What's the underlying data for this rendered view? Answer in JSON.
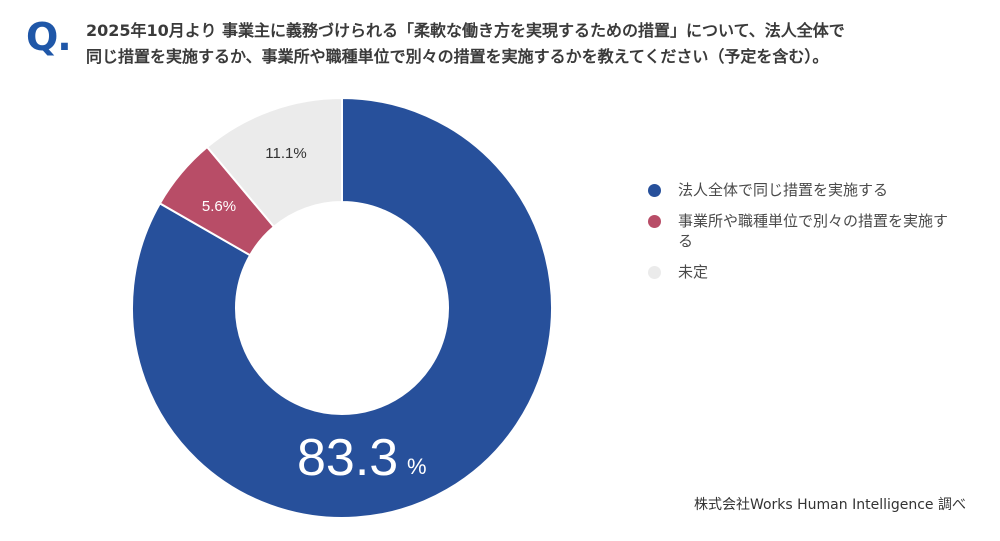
{
  "header": {
    "q_mark": "Q.",
    "question_line1": "2025年10月より 事業主に義務づけられる「柔軟な働き方を実現するための措置」について、法人全体で",
    "question_line2": "同じ措置を実施するか、事業所や職種単位で別々の措置を実施するかを教えてください（予定を含む）。"
  },
  "footer": {
    "credit": "株式会社Works Human Intelligence 調べ"
  },
  "chart_data": {
    "type": "pie",
    "donut": true,
    "title": "",
    "legend_position": "right",
    "series": [
      {
        "name": "法人全体で同じ措置を実施する",
        "value": 83.3,
        "label": "83.3",
        "unit": "%",
        "color": "#27509b"
      },
      {
        "name": "事業所や職種単位で別々の措置を実施する",
        "value": 5.6,
        "label": "5.6%",
        "color": "#b84d67"
      },
      {
        "name": "未定",
        "value": 11.1,
        "label": "11.1%",
        "color": "#ebebeb"
      }
    ]
  }
}
